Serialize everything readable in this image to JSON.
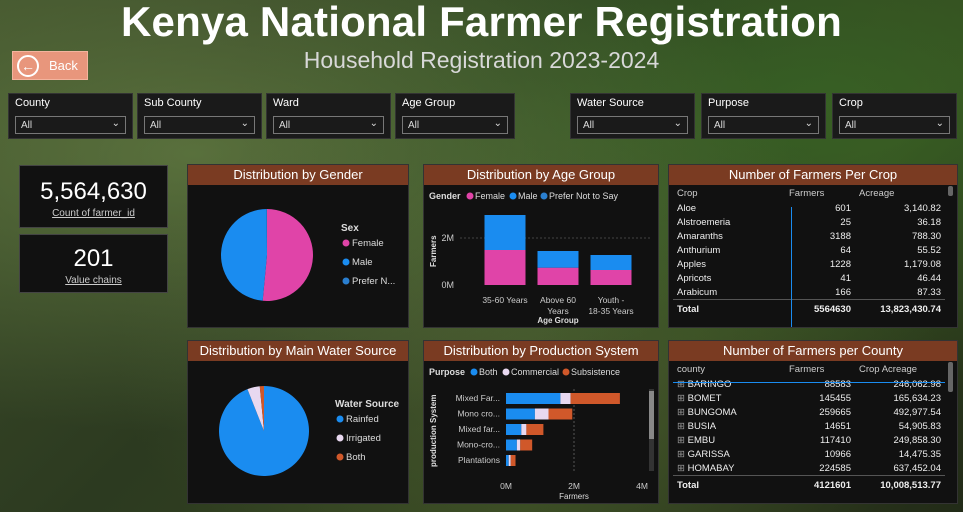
{
  "header": {
    "title": "Kenya National Farmer Registration",
    "subtitle": "Household Registration 2023-2024",
    "back_label": "Back"
  },
  "slicers": [
    {
      "label": "County",
      "value": "All"
    },
    {
      "label": "Sub County",
      "value": "All"
    },
    {
      "label": "Ward",
      "value": "All"
    },
    {
      "label": "Age Group",
      "value": "All"
    },
    {
      "label": "Water Source",
      "value": "All"
    },
    {
      "label": "Purpose",
      "value": "All"
    },
    {
      "label": "Crop",
      "value": "All"
    }
  ],
  "cards": {
    "farmer_count": {
      "value": "5,564,630",
      "caption": "Count of farmer_id"
    },
    "value_chains": {
      "value": "201",
      "caption": "Value chains"
    }
  },
  "gender_chart": {
    "title": "Distribution by Gender",
    "legend_title": "Sex",
    "legend": [
      "Female",
      "Male",
      "Prefer N..."
    ],
    "colors": [
      "#e044a8",
      "#1a8cf0",
      "#2a7fd0"
    ],
    "chart_data": {
      "type": "pie",
      "labels": [
        "Female",
        "Male",
        "Prefer Not to Say"
      ],
      "values": [
        51.5,
        48.4,
        0.1
      ]
    }
  },
  "age_chart": {
    "title": "Distribution by Age Group",
    "legend_title": "Gender",
    "legend": [
      "Female",
      "Male",
      "Prefer Not to Say"
    ],
    "colors": [
      "#e044a8",
      "#1a8cf0",
      "#2a7fd0"
    ],
    "ylabel": "Farmers",
    "xlabel": "Age Group",
    "y_ticks": [
      "2M",
      "0M"
    ],
    "chart_data": {
      "type": "bar",
      "categories": [
        "35-60 Years",
        "Above 60 Years",
        "Youth - 18-35 Years"
      ],
      "series": [
        {
          "name": "Female",
          "values": [
            1050000,
            520000,
            450000
          ]
        },
        {
          "name": "Male",
          "values": [
            1050000,
            500000,
            450000
          ]
        }
      ],
      "ylim": [
        0,
        2400000
      ]
    }
  },
  "crop_table": {
    "title": "Number of Farmers Per Crop",
    "columns": [
      "Crop",
      "Farmers",
      "Acreage"
    ],
    "rows": [
      [
        "Aloe",
        "601",
        "3,140.82"
      ],
      [
        "Alstroemeria",
        "25",
        "36.18"
      ],
      [
        "Amaranths",
        "3188",
        "788.30"
      ],
      [
        "Anthurium",
        "64",
        "55.52"
      ],
      [
        "Apples",
        "1228",
        "1,179.08"
      ],
      [
        "Apricots",
        "41",
        "46.44"
      ],
      [
        "Arabicum",
        "166",
        "87.33"
      ]
    ],
    "total": [
      "Total",
      "5564630",
      "13,823,430.74"
    ]
  },
  "water_chart": {
    "title": "Distribution by Main Water Source",
    "legend_title": "Water Source",
    "legend": [
      "Rainfed",
      "Irrigated",
      "Both"
    ],
    "colors": [
      "#1a8cf0",
      "#e8d8f0",
      "#d0582a"
    ],
    "chart_data": {
      "type": "pie",
      "labels": [
        "Rainfed",
        "Irrigated",
        "Both"
      ],
      "values": [
        94,
        4.5,
        1.5
      ]
    }
  },
  "production_chart": {
    "title": "Distribution by Production System",
    "legend_title": "Purpose",
    "legend": [
      "Both",
      "Commercial",
      "Subsistence"
    ],
    "colors": [
      "#1a8cf0",
      "#e8d8f0",
      "#d0582a"
    ],
    "ylabel": "production System",
    "xlabel": "Farmers",
    "x_ticks": [
      "0M",
      "2M",
      "4M"
    ],
    "chart_data": {
      "type": "bar",
      "orientation": "horizontal",
      "categories": [
        "Mixed Far...",
        "Mono cro...",
        "Mixed far...",
        "Mono-cro...",
        "Plantations"
      ],
      "series": [
        {
          "name": "Both",
          "values": [
            1600000,
            850000,
            450000,
            320000,
            80000
          ]
        },
        {
          "name": "Commercial",
          "values": [
            300000,
            400000,
            150000,
            100000,
            60000
          ]
        },
        {
          "name": "Subsistence",
          "values": [
            1450000,
            700000,
            500000,
            350000,
            140000
          ]
        }
      ],
      "xlim": [
        0,
        4000000
      ]
    }
  },
  "county_table": {
    "title": "Number of Farmers per County",
    "columns": [
      "county",
      "Farmers",
      "Crop Acreage"
    ],
    "rows": [
      [
        "BARINGO",
        "88583",
        "246,062.98"
      ],
      [
        "BOMET",
        "145455",
        "165,634.23"
      ],
      [
        "BUNGOMA",
        "259665",
        "492,977.54"
      ],
      [
        "BUSIA",
        "14651",
        "54,905.83"
      ],
      [
        "EMBU",
        "117410",
        "249,858.30"
      ],
      [
        "GARISSA",
        "10966",
        "14,475.35"
      ],
      [
        "HOMABAY",
        "224585",
        "637,452.04"
      ]
    ],
    "total": [
      "Total",
      "4121601",
      "10,008,513.77"
    ]
  }
}
